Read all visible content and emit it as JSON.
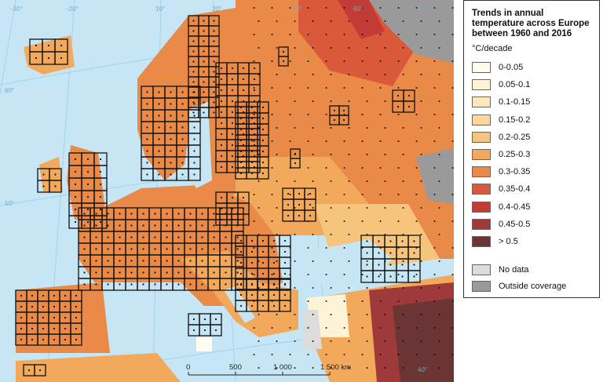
{
  "legend": {
    "title": "Trends in annual temperature across Europe between 1960 and 2016",
    "unit": "°C/decade",
    "classes": [
      {
        "label": "0-0.05",
        "color": "#fffbee"
      },
      {
        "label": "0.05-0.1",
        "color": "#fff3d6"
      },
      {
        "label": "0.1-0.15",
        "color": "#fde7bb"
      },
      {
        "label": "0.15-0.2",
        "color": "#fbd79b"
      },
      {
        "label": "0.2-0.25",
        "color": "#f7c47d"
      },
      {
        "label": "0.25-0.3",
        "color": "#f2a95c"
      },
      {
        "label": "0.3-0.35",
        "color": "#e98a48"
      },
      {
        "label": "0.35-0.4",
        "color": "#d9593a"
      },
      {
        "label": "0.4-0.45",
        "color": "#c23b35"
      },
      {
        "label": "0.45-0.5",
        "color": "#9e3b3a"
      },
      {
        "label": "> 0.5",
        "color": "#6b3535"
      }
    ],
    "no_data": {
      "label": "No data",
      "color": "#dcdcdc"
    },
    "outside": {
      "label": "Outside coverage",
      "color": "#9a9a9a"
    }
  },
  "map": {
    "sea_color": "#c6e6f6",
    "graticule_labels": [
      "-30°",
      "-20°",
      "10°",
      "20°",
      "30°",
      "60°",
      "70°",
      "60°",
      "50°",
      "50°",
      "40°"
    ],
    "scalebar": {
      "labels": [
        "0",
        "500",
        "1 000",
        "1 500 km"
      ]
    }
  }
}
